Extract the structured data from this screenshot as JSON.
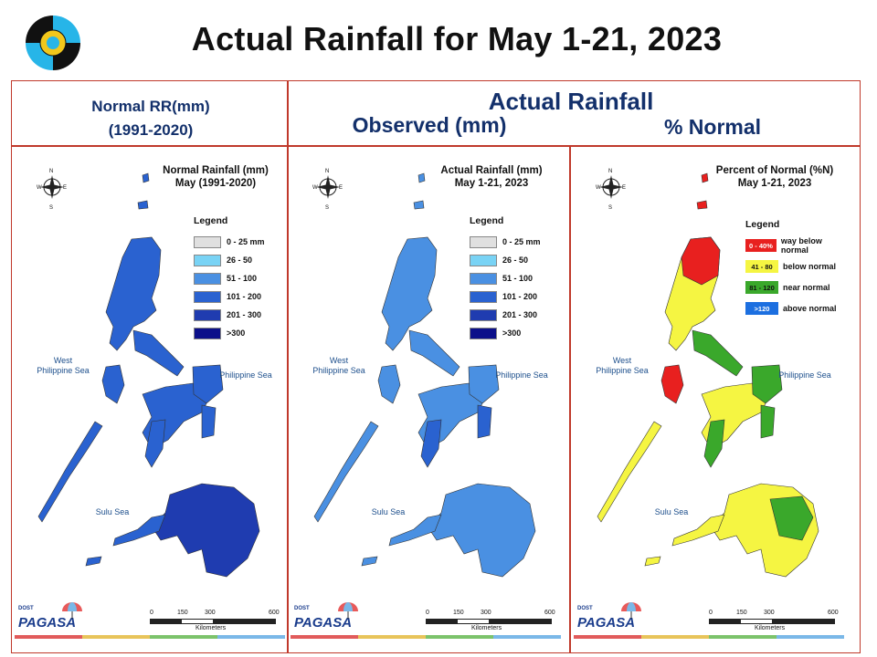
{
  "title": "Actual Rainfall for May 1-21, 2023",
  "header": {
    "normal_line1": "Normal RR(mm)",
    "normal_line2": "(1991-2020)",
    "actual": "Actual Rainfall",
    "observed": "Observed (mm)",
    "percent": "% Normal"
  },
  "panels": [
    {
      "title_line1": "Normal Rainfall (mm)",
      "title_line2": "May (1991-2020)",
      "legend_title": "Legend",
      "legend": [
        {
          "label": "0 - 25 mm",
          "color": "#e0e0e0"
        },
        {
          "label": "26 - 50",
          "color": "#79d3f5"
        },
        {
          "label": "51 - 100",
          "color": "#4a90e2"
        },
        {
          "label": "101 - 200",
          "color": "#2a62d0"
        },
        {
          "label": "201 - 300",
          "color": "#1f3cb0"
        },
        {
          "label": ">300",
          "color": "#0c108a"
        }
      ]
    },
    {
      "title_line1": "Actual Rainfall (mm)",
      "title_line2": "May 1-21, 2023",
      "legend_title": "Legend",
      "legend": [
        {
          "label": "0 - 25 mm",
          "color": "#e0e0e0"
        },
        {
          "label": "26 - 50",
          "color": "#79d3f5"
        },
        {
          "label": "51 - 100",
          "color": "#4a90e2"
        },
        {
          "label": "101 - 200",
          "color": "#2a62d0"
        },
        {
          "label": "201 - 300",
          "color": "#1f3cb0"
        },
        {
          "label": ">300",
          "color": "#0c108a"
        }
      ]
    },
    {
      "title_line1": "Percent of Normal (%N)",
      "title_line2": "May 1-21, 2023",
      "legend_title": "Legend",
      "legend": [
        {
          "swatch": "0 - 40%",
          "label": "way below normal",
          "color": "#e8201f"
        },
        {
          "swatch": "41 - 80",
          "label": "below normal",
          "color": "#f5f542"
        },
        {
          "swatch": "81 - 120",
          "label": "near normal",
          "color": "#3aa82b"
        },
        {
          "swatch": ">120",
          "label": "above normal",
          "color": "#1c6fe0"
        }
      ]
    }
  ],
  "seas": {
    "west1": "West",
    "west2": "Philippine Sea",
    "east": "Philippine Sea",
    "sulu": "Sulu Sea"
  },
  "compass": {
    "n": "N",
    "s": "S",
    "e": "E",
    "w": "W"
  },
  "scale": {
    "ticks": [
      "0",
      "150",
      "300",
      "600"
    ],
    "unit": "Kilometers"
  },
  "brand": {
    "name": "PAGASA",
    "dost": "DOST"
  },
  "footer_colors": [
    "#e15b5b",
    "#e8c45a",
    "#7cc36b",
    "#7ab8e8"
  ]
}
